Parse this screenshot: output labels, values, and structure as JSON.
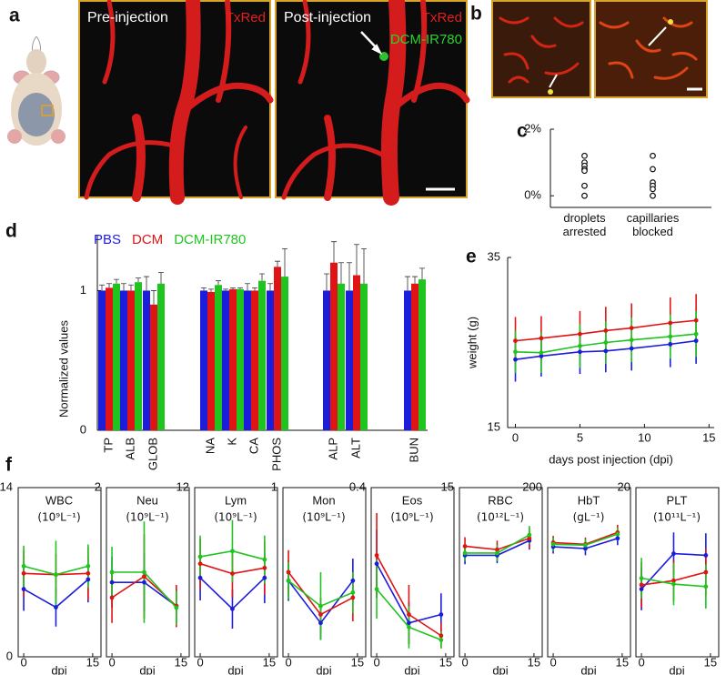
{
  "panels": {
    "a": {
      "label": "a",
      "pre_title": "Pre-injection",
      "pre_channel": "TxRed",
      "post_title": "Post-injection",
      "post_channel": "TxRed",
      "post_probe": "DCM-IR780"
    },
    "b": {
      "label": "b"
    },
    "c": {
      "label": "c"
    },
    "d": {
      "label": "d"
    },
    "e": {
      "label": "e"
    },
    "f": {
      "label": "f"
    }
  },
  "chart_data": [
    {
      "type": "strip",
      "categories": [
        "droplets arrested",
        "capillaries blocked"
      ],
      "ylim": [
        -0.35,
        2
      ],
      "yticks": [
        {
          "value": 0,
          "label": "0%"
        },
        {
          "value": 2,
          "label": "2%"
        }
      ],
      "series": [
        {
          "values": [
            1.2,
            1.0,
            0.9,
            0.8,
            0.75,
            0.3,
            0.0
          ]
        },
        {
          "values": [
            1.2,
            0.8,
            0.4,
            0.3,
            0.2,
            0.0
          ]
        }
      ]
    },
    {
      "type": "bar",
      "ylabel": "Normalized values",
      "legend": "top-left",
      "categories": [
        "TP",
        "ALB",
        "GLOB",
        "NA",
        "K",
        "CA",
        "PHOS",
        "ALP",
        "ALT",
        "BUN"
      ],
      "ylim": [
        0,
        1.4
      ],
      "yticks": [
        0,
        1
      ],
      "series": [
        {
          "name": "PBS",
          "color": "#1c1cdc",
          "values": [
            1,
            1,
            1,
            1,
            1,
            1,
            1,
            1,
            1,
            1
          ],
          "errors": [
            0.04,
            0.05,
            0.1,
            0.02,
            0.01,
            0.05,
            0.05,
            0.12,
            0.2,
            0.1
          ]
        },
        {
          "name": "DCM",
          "color": "#e01414",
          "values": [
            1.02,
            1.0,
            0.9,
            0.99,
            1.01,
            1.0,
            1.17,
            1.2,
            1.11,
            1.05
          ],
          "errors": [
            0.03,
            0.04,
            0.1,
            0.02,
            0.01,
            0.02,
            0.04,
            0.15,
            0.22,
            0.05
          ]
        },
        {
          "name": "DCM-IR780",
          "color": "#1fc41f",
          "values": [
            1.05,
            1.06,
            1.05,
            1.04,
            1.01,
            1.07,
            1.1,
            1.05,
            1.05,
            1.08
          ],
          "errors": [
            0.03,
            0.03,
            0.08,
            0.03,
            0.01,
            0.05,
            0.2,
            0.15,
            0.25,
            0.08
          ]
        }
      ]
    },
    {
      "type": "line",
      "xlabel": "days post injection (dpi)",
      "ylabel": "weight (g)",
      "x": [
        0,
        2,
        5,
        7,
        9,
        12,
        14
      ],
      "xlim": [
        -0.6,
        15.4
      ],
      "xticks": [
        0,
        5,
        10,
        15
      ],
      "ylim": [
        15,
        35
      ],
      "yticks": [
        15,
        35
      ],
      "series": [
        {
          "color": "#1c1cdc",
          "values": [
            23.0,
            23.4,
            23.9,
            24.0,
            24.3,
            24.8,
            25.2
          ],
          "errors": [
            2.6,
            2.4,
            2.6,
            2.5,
            2.6,
            2.7,
            2.7
          ]
        },
        {
          "color": "#e01414",
          "values": [
            25.2,
            25.5,
            26.0,
            26.4,
            26.7,
            27.3,
            27.6
          ],
          "errors": [
            2.8,
            2.6,
            2.7,
            2.8,
            2.9,
            3.0,
            3.1
          ]
        },
        {
          "color": "#1fc41f",
          "values": [
            23.9,
            23.8,
            24.6,
            25.0,
            25.3,
            25.7,
            26.0
          ],
          "errors": [
            2.5,
            2.4,
            2.6,
            2.5,
            2.6,
            2.6,
            2.7
          ]
        }
      ]
    },
    {
      "type": "line",
      "title": "WBC",
      "subtitle": "(10⁹L⁻¹)",
      "xlabel": "dpi",
      "x": [
        0,
        7,
        14
      ],
      "xlim": [
        -1.2,
        16.8
      ],
      "xticks": [
        0,
        15
      ],
      "ylim": [
        0,
        14
      ],
      "yticks": [
        0,
        14
      ],
      "series": [
        {
          "color": "#1c1cdc",
          "values": [
            5.6,
            4.1,
            6.4
          ],
          "errors": [
            1.8,
            1.6,
            1.9
          ]
        },
        {
          "color": "#e01414",
          "values": [
            6.9,
            6.8,
            6.9
          ],
          "errors": [
            1.9,
            1.7,
            2.2
          ]
        },
        {
          "color": "#1fc41f",
          "values": [
            7.5,
            6.8,
            7.5
          ],
          "errors": [
            1.7,
            2.8,
            1.8
          ]
        }
      ]
    },
    {
      "type": "line",
      "title": "Neu",
      "subtitle": "(10⁹L⁻¹)",
      "xlabel": "dpi",
      "x": [
        0,
        7,
        14
      ],
      "xlim": [
        -1.2,
        16.8
      ],
      "xticks": [
        0,
        15
      ],
      "ylim": [
        0,
        2
      ],
      "yticks": [
        2
      ],
      "series": [
        {
          "color": "#1c1cdc",
          "values": [
            0.88,
            0.88,
            0.6
          ],
          "errors": [
            0.3,
            0.35,
            0.2
          ]
        },
        {
          "color": "#e01414",
          "values": [
            0.7,
            0.95,
            0.6
          ],
          "errors": [
            0.3,
            0.5,
            0.25
          ]
        },
        {
          "color": "#1fc41f",
          "values": [
            1.0,
            1.0,
            0.58
          ],
          "errors": [
            0.3,
            0.6,
            0.2
          ]
        }
      ]
    },
    {
      "type": "line",
      "title": "Lym",
      "subtitle": "(10⁹L⁻¹)",
      "xlabel": "dpi",
      "x": [
        0,
        7,
        14
      ],
      "xlim": [
        -1.2,
        16.8
      ],
      "xticks": [
        0,
        15
      ],
      "ylim": [
        0,
        12
      ],
      "yticks": [
        12
      ],
      "series": [
        {
          "color": "#1c1cdc",
          "values": [
            5.6,
            3.4,
            5.6
          ],
          "errors": [
            1.6,
            1.4,
            1.8
          ]
        },
        {
          "color": "#e01414",
          "values": [
            6.6,
            5.9,
            6.3
          ],
          "errors": [
            1.8,
            1.7,
            1.9
          ]
        },
        {
          "color": "#1fc41f",
          "values": [
            7.1,
            7.5,
            6.9
          ],
          "errors": [
            1.5,
            2.2,
            1.7
          ]
        }
      ]
    },
    {
      "type": "line",
      "title": "Mon",
      "subtitle": "(10⁹L⁻¹)",
      "xlabel": "dpi",
      "x": [
        0,
        7,
        14
      ],
      "xlim": [
        -1.2,
        16.8
      ],
      "xticks": [
        0,
        15
      ],
      "ylim": [
        0,
        1
      ],
      "yticks": [
        1
      ],
      "series": [
        {
          "color": "#1c1cdc",
          "values": [
            0.45,
            0.2,
            0.45
          ],
          "errors": [
            0.12,
            0.1,
            0.13
          ]
        },
        {
          "color": "#e01414",
          "values": [
            0.5,
            0.25,
            0.35
          ],
          "errors": [
            0.13,
            0.1,
            0.14
          ]
        },
        {
          "color": "#1fc41f",
          "values": [
            0.45,
            0.3,
            0.38
          ],
          "errors": [
            0.11,
            0.2,
            0.12
          ]
        }
      ]
    },
    {
      "type": "line",
      "title": "Eos",
      "subtitle": "(10⁹L⁻¹)",
      "xlabel": "dpi",
      "x": [
        0,
        7,
        14
      ],
      "xlim": [
        -1.2,
        16.8
      ],
      "xticks": [
        0,
        15
      ],
      "ylim": [
        0,
        0.4
      ],
      "yticks": [
        0.4
      ],
      "series": [
        {
          "color": "#1c1cdc",
          "values": [
            0.22,
            0.08,
            0.1
          ],
          "errors": [
            0.08,
            0.05,
            0.05
          ]
        },
        {
          "color": "#e01414",
          "values": [
            0.24,
            0.1,
            0.05
          ],
          "errors": [
            0.1,
            0.07,
            0.03
          ]
        },
        {
          "color": "#1fc41f",
          "values": [
            0.16,
            0.07,
            0.04
          ],
          "errors": [
            0.07,
            0.05,
            0.02
          ]
        }
      ]
    },
    {
      "type": "line",
      "title": "RBC",
      "subtitle": "(10¹²L⁻¹)",
      "xlabel": "dpi",
      "x": [
        0,
        7,
        14
      ],
      "xlim": [
        -1.2,
        16.8
      ],
      "xticks": [
        0,
        15
      ],
      "ylim": [
        0,
        15
      ],
      "yticks": [
        15
      ],
      "series": [
        {
          "color": "#1c1cdc",
          "values": [
            9.0,
            9.0,
            10.3
          ],
          "errors": [
            0.8,
            0.7,
            0.8
          ]
        },
        {
          "color": "#e01414",
          "values": [
            9.8,
            9.5,
            10.5
          ],
          "errors": [
            0.8,
            0.8,
            0.9
          ]
        },
        {
          "color": "#1fc41f",
          "values": [
            9.2,
            9.2,
            10.8
          ],
          "errors": [
            0.7,
            0.7,
            0.8
          ]
        }
      ]
    },
    {
      "type": "line",
      "title": "HbT",
      "subtitle": "(gL⁻¹)",
      "xlabel": "dpi",
      "x": [
        0,
        7,
        14
      ],
      "xlim": [
        -1.2,
        16.8
      ],
      "xticks": [
        0,
        15
      ],
      "ylim": [
        0,
        200
      ],
      "yticks": [
        200
      ],
      "series": [
        {
          "color": "#1c1cdc",
          "values": [
            130,
            128,
            140
          ],
          "errors": [
            8,
            8,
            8
          ]
        },
        {
          "color": "#e01414",
          "values": [
            135,
            133,
            147
          ],
          "errors": [
            8,
            8,
            9
          ]
        },
        {
          "color": "#1fc41f",
          "values": [
            133,
            132,
            145
          ],
          "errors": [
            8,
            7,
            8
          ]
        }
      ]
    },
    {
      "type": "line",
      "title": "PLT",
      "subtitle": "(10¹¹L⁻¹)",
      "xlabel": "dpi",
      "x": [
        0,
        7,
        14
      ],
      "xlim": [
        -1.2,
        16.8
      ],
      "xticks": [
        0,
        15
      ],
      "ylim": [
        0,
        20
      ],
      "yticks": [
        20
      ],
      "series": [
        {
          "color": "#1c1cdc",
          "values": [
            8.0,
            12.2,
            12.0
          ],
          "errors": [
            2.5,
            2.5,
            2.6
          ]
        },
        {
          "color": "#e01414",
          "values": [
            8.5,
            9.0,
            10.0
          ],
          "errors": [
            2.7,
            2.4,
            2.8
          ]
        },
        {
          "color": "#1fc41f",
          "values": [
            9.3,
            8.6,
            8.3
          ],
          "errors": [
            2.4,
            2.5,
            2.6
          ]
        }
      ]
    }
  ]
}
